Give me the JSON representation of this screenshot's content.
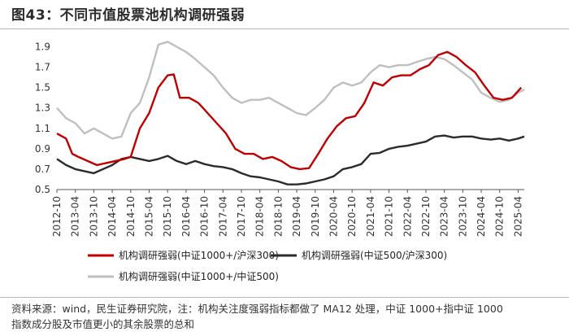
{
  "header": {
    "title": "图43：不同市值股票池机构调研强弱"
  },
  "footer": {
    "source_line1": "资料来源：wind，民生证券研究院，注：机构关注度强弱指标都做了 MA12 处理，中证 1000+指中证 1000",
    "source_line2": "指数成分股及市值更小的其余股票的总和"
  },
  "chart_data": {
    "type": "line",
    "title": "不同市值股票池机构调研强弱",
    "xlabel": "",
    "ylabel": "",
    "ylim": [
      0.5,
      2.0
    ],
    "yticks": [
      "0.5",
      "0.7",
      "0.9",
      "1.1",
      "1.3",
      "1.5",
      "1.7",
      "1.9"
    ],
    "xticks": [
      "2012-10",
      "2013-04",
      "2013-10",
      "2014-04",
      "2014-10",
      "2015-04",
      "2015-10",
      "2016-04",
      "2016-10",
      "2017-04",
      "2017-10",
      "2018-04",
      "2018-10",
      "2019-04",
      "2019-10",
      "2020-04",
      "2020-10",
      "2021-04",
      "2021-10",
      "2022-04",
      "2022-10",
      "2023-04",
      "2023-10",
      "2024-04",
      "2024-10",
      "2025-04"
    ],
    "x_start": "2012-10",
    "x_end": "2025-06",
    "legend_position": "bottom",
    "series": [
      {
        "name": "机构调研强弱(中证1000+/沪深300)",
        "color": "#c00000",
        "points": [
          [
            "2012-10",
            1.05
          ],
          [
            "2013-01",
            1.0
          ],
          [
            "2013-03",
            0.85
          ],
          [
            "2013-05",
            0.82
          ],
          [
            "2013-08",
            0.78
          ],
          [
            "2013-11",
            0.74
          ],
          [
            "2014-02",
            0.76
          ],
          [
            "2014-05",
            0.78
          ],
          [
            "2014-08",
            0.8
          ],
          [
            "2014-10",
            0.82
          ],
          [
            "2015-01",
            1.1
          ],
          [
            "2015-04",
            1.25
          ],
          [
            "2015-07",
            1.5
          ],
          [
            "2015-10",
            1.62
          ],
          [
            "2015-12",
            1.63
          ],
          [
            "2016-02",
            1.4
          ],
          [
            "2016-05",
            1.4
          ],
          [
            "2016-08",
            1.35
          ],
          [
            "2016-11",
            1.25
          ],
          [
            "2017-02",
            1.15
          ],
          [
            "2017-05",
            1.05
          ],
          [
            "2017-08",
            0.9
          ],
          [
            "2017-11",
            0.85
          ],
          [
            "2018-02",
            0.85
          ],
          [
            "2018-05",
            0.8
          ],
          [
            "2018-08",
            0.82
          ],
          [
            "2018-11",
            0.78
          ],
          [
            "2019-02",
            0.72
          ],
          [
            "2019-05",
            0.7
          ],
          [
            "2019-08",
            0.71
          ],
          [
            "2019-11",
            0.85
          ],
          [
            "2020-02",
            1.0
          ],
          [
            "2020-05",
            1.12
          ],
          [
            "2020-08",
            1.2
          ],
          [
            "2020-11",
            1.22
          ],
          [
            "2021-02",
            1.35
          ],
          [
            "2021-05",
            1.55
          ],
          [
            "2021-08",
            1.52
          ],
          [
            "2021-11",
            1.6
          ],
          [
            "2022-02",
            1.62
          ],
          [
            "2022-05",
            1.62
          ],
          [
            "2022-08",
            1.68
          ],
          [
            "2022-11",
            1.72
          ],
          [
            "2023-02",
            1.82
          ],
          [
            "2023-05",
            1.85
          ],
          [
            "2023-08",
            1.8
          ],
          [
            "2023-11",
            1.72
          ],
          [
            "2024-02",
            1.65
          ],
          [
            "2024-05",
            1.52
          ],
          [
            "2024-08",
            1.4
          ],
          [
            "2024-11",
            1.38
          ],
          [
            "2025-02",
            1.4
          ],
          [
            "2025-05",
            1.5
          ]
        ]
      },
      {
        "name": "机构调研强弱(中证500/沪深300)",
        "color": "#2b2b2b",
        "points": [
          [
            "2012-10",
            0.8
          ],
          [
            "2013-01",
            0.74
          ],
          [
            "2013-04",
            0.7
          ],
          [
            "2013-07",
            0.68
          ],
          [
            "2013-10",
            0.66
          ],
          [
            "2014-01",
            0.7
          ],
          [
            "2014-04",
            0.74
          ],
          [
            "2014-07",
            0.8
          ],
          [
            "2014-10",
            0.82
          ],
          [
            "2015-01",
            0.8
          ],
          [
            "2015-04",
            0.78
          ],
          [
            "2015-07",
            0.8
          ],
          [
            "2015-10",
            0.83
          ],
          [
            "2016-01",
            0.78
          ],
          [
            "2016-04",
            0.75
          ],
          [
            "2016-07",
            0.78
          ],
          [
            "2016-10",
            0.75
          ],
          [
            "2017-01",
            0.73
          ],
          [
            "2017-04",
            0.72
          ],
          [
            "2017-07",
            0.7
          ],
          [
            "2017-10",
            0.66
          ],
          [
            "2018-01",
            0.63
          ],
          [
            "2018-04",
            0.62
          ],
          [
            "2018-07",
            0.6
          ],
          [
            "2018-10",
            0.58
          ],
          [
            "2019-01",
            0.55
          ],
          [
            "2019-04",
            0.55
          ],
          [
            "2019-07",
            0.56
          ],
          [
            "2019-10",
            0.58
          ],
          [
            "2020-01",
            0.6
          ],
          [
            "2020-04",
            0.63
          ],
          [
            "2020-07",
            0.7
          ],
          [
            "2020-10",
            0.72
          ],
          [
            "2021-01",
            0.75
          ],
          [
            "2021-04",
            0.85
          ],
          [
            "2021-07",
            0.86
          ],
          [
            "2021-10",
            0.9
          ],
          [
            "2022-01",
            0.92
          ],
          [
            "2022-04",
            0.93
          ],
          [
            "2022-07",
            0.95
          ],
          [
            "2022-10",
            0.97
          ],
          [
            "2023-01",
            1.02
          ],
          [
            "2023-04",
            1.03
          ],
          [
            "2023-07",
            1.01
          ],
          [
            "2023-10",
            1.02
          ],
          [
            "2024-01",
            1.02
          ],
          [
            "2024-04",
            1.0
          ],
          [
            "2024-07",
            0.99
          ],
          [
            "2024-10",
            1.0
          ],
          [
            "2025-01",
            0.98
          ],
          [
            "2025-04",
            1.0
          ],
          [
            "2025-06",
            1.02
          ]
        ]
      },
      {
        "name": "机构调研强弱(中证1000+/中证500)",
        "color": "#bfbfbf",
        "points": [
          [
            "2012-10",
            1.3
          ],
          [
            "2013-01",
            1.2
          ],
          [
            "2013-04",
            1.15
          ],
          [
            "2013-07",
            1.05
          ],
          [
            "2013-10",
            1.1
          ],
          [
            "2014-01",
            1.05
          ],
          [
            "2014-04",
            1.0
          ],
          [
            "2014-07",
            1.02
          ],
          [
            "2014-10",
            1.25
          ],
          [
            "2015-01",
            1.35
          ],
          [
            "2015-04",
            1.6
          ],
          [
            "2015-07",
            1.92
          ],
          [
            "2015-10",
            1.95
          ],
          [
            "2016-01",
            1.9
          ],
          [
            "2016-04",
            1.85
          ],
          [
            "2016-07",
            1.78
          ],
          [
            "2016-10",
            1.7
          ],
          [
            "2017-01",
            1.62
          ],
          [
            "2017-04",
            1.5
          ],
          [
            "2017-07",
            1.4
          ],
          [
            "2017-10",
            1.35
          ],
          [
            "2018-01",
            1.38
          ],
          [
            "2018-04",
            1.38
          ],
          [
            "2018-07",
            1.4
          ],
          [
            "2018-10",
            1.35
          ],
          [
            "2019-01",
            1.3
          ],
          [
            "2019-04",
            1.25
          ],
          [
            "2019-07",
            1.23
          ],
          [
            "2019-10",
            1.3
          ],
          [
            "2020-01",
            1.38
          ],
          [
            "2020-04",
            1.5
          ],
          [
            "2020-07",
            1.55
          ],
          [
            "2020-10",
            1.52
          ],
          [
            "2021-01",
            1.55
          ],
          [
            "2021-04",
            1.65
          ],
          [
            "2021-07",
            1.72
          ],
          [
            "2021-10",
            1.7
          ],
          [
            "2022-01",
            1.72
          ],
          [
            "2022-04",
            1.72
          ],
          [
            "2022-07",
            1.75
          ],
          [
            "2022-10",
            1.78
          ],
          [
            "2023-01",
            1.8
          ],
          [
            "2023-04",
            1.78
          ],
          [
            "2023-07",
            1.72
          ],
          [
            "2023-10",
            1.65
          ],
          [
            "2024-01",
            1.58
          ],
          [
            "2024-04",
            1.45
          ],
          [
            "2024-07",
            1.4
          ],
          [
            "2024-10",
            1.36
          ],
          [
            "2025-01",
            1.38
          ],
          [
            "2025-04",
            1.45
          ],
          [
            "2025-06",
            1.48
          ]
        ]
      }
    ]
  }
}
